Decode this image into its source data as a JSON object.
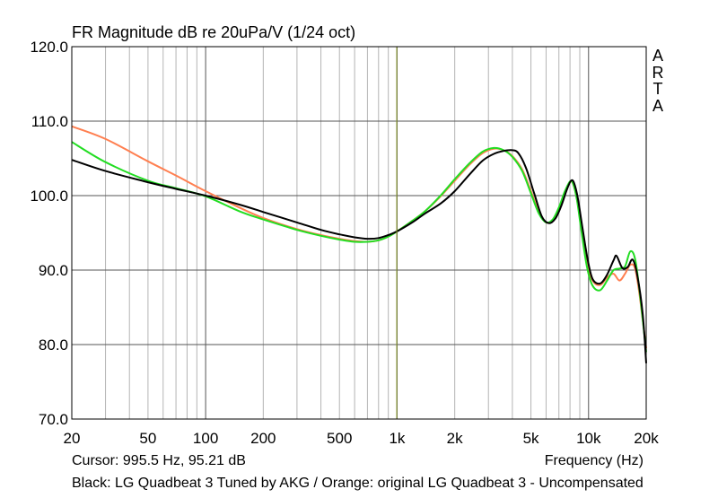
{
  "chart_data": {
    "type": "line",
    "title": "FR Magnitude dB re 20uPa/V (1/24 oct)",
    "xlabel": "Frequency (Hz)",
    "ylabel": "",
    "x_scale": "log",
    "xlim": [
      20,
      20000
    ],
    "ylim": [
      70,
      120
    ],
    "x_ticks": [
      {
        "v": 20,
        "label": "20"
      },
      {
        "v": 50,
        "label": "50"
      },
      {
        "v": 100,
        "label": "100"
      },
      {
        "v": 200,
        "label": "200"
      },
      {
        "v": 500,
        "label": "500"
      },
      {
        "v": 1000,
        "label": "1k"
      },
      {
        "v": 2000,
        "label": "2k"
      },
      {
        "v": 5000,
        "label": "5k"
      },
      {
        "v": 10000,
        "label": "10k"
      },
      {
        "v": 20000,
        "label": "20k"
      }
    ],
    "y_ticks": [
      {
        "v": 70,
        "label": "70.0"
      },
      {
        "v": 80,
        "label": "80.0"
      },
      {
        "v": 90,
        "label": "90.0"
      },
      {
        "v": 100,
        "label": "100.0"
      },
      {
        "v": 110,
        "label": "110.0"
      },
      {
        "v": 120,
        "label": "120.0"
      }
    ],
    "grid": true,
    "cursor_x": 995.5,
    "series": [
      {
        "color": "#ff7f50",
        "values": [
          [
            20,
            109.3
          ],
          [
            30,
            107.6
          ],
          [
            50,
            104.6
          ],
          [
            70,
            102.7
          ],
          [
            100,
            100.6
          ],
          [
            150,
            98.4
          ],
          [
            200,
            97.0
          ],
          [
            300,
            95.5
          ],
          [
            400,
            94.7
          ],
          [
            500,
            94.2
          ],
          [
            600,
            93.9
          ],
          [
            700,
            93.8
          ],
          [
            800,
            94.0
          ],
          [
            900,
            94.5
          ],
          [
            1000,
            95.2
          ],
          [
            1200,
            96.6
          ],
          [
            1400,
            97.9
          ],
          [
            1700,
            100.0
          ],
          [
            2000,
            102.0
          ],
          [
            2400,
            104.2
          ],
          [
            2800,
            105.7
          ],
          [
            3200,
            106.3
          ],
          [
            3600,
            106.1
          ],
          [
            4000,
            105.3
          ],
          [
            4500,
            103.5
          ],
          [
            5000,
            100.6
          ],
          [
            5500,
            97.8
          ],
          [
            6000,
            96.4
          ],
          [
            6500,
            96.7
          ],
          [
            7000,
            98.2
          ],
          [
            7500,
            100.3
          ],
          [
            8000,
            101.8
          ],
          [
            8300,
            101.6
          ],
          [
            8700,
            99.5
          ],
          [
            9200,
            95.5
          ],
          [
            9800,
            91.2
          ],
          [
            10500,
            88.6
          ],
          [
            11500,
            88.0
          ],
          [
            12500,
            89.0
          ],
          [
            13500,
            89.5
          ],
          [
            14500,
            88.6
          ],
          [
            15500,
            89.5
          ],
          [
            16500,
            90.7
          ],
          [
            17500,
            90.2
          ],
          [
            18500,
            86.5
          ],
          [
            20000,
            79.5
          ]
        ]
      },
      {
        "color": "#22dd22",
        "values": [
          [
            20,
            107.2
          ],
          [
            30,
            104.5
          ],
          [
            50,
            102.0
          ],
          [
            70,
            101.0
          ],
          [
            100,
            99.9
          ],
          [
            150,
            97.9
          ],
          [
            200,
            96.8
          ],
          [
            300,
            95.4
          ],
          [
            400,
            94.6
          ],
          [
            500,
            94.1
          ],
          [
            600,
            93.8
          ],
          [
            700,
            93.8
          ],
          [
            800,
            94.0
          ],
          [
            900,
            94.5
          ],
          [
            1000,
            95.2
          ],
          [
            1200,
            96.6
          ],
          [
            1400,
            97.9
          ],
          [
            1700,
            100.1
          ],
          [
            2000,
            102.2
          ],
          [
            2400,
            104.4
          ],
          [
            2800,
            105.9
          ],
          [
            3200,
            106.4
          ],
          [
            3600,
            106.1
          ],
          [
            4000,
            105.2
          ],
          [
            4500,
            103.3
          ],
          [
            5000,
            100.3
          ],
          [
            5500,
            97.6
          ],
          [
            6000,
            96.4
          ],
          [
            6500,
            96.8
          ],
          [
            7000,
            98.4
          ],
          [
            7500,
            100.5
          ],
          [
            8000,
            101.9
          ],
          [
            8300,
            101.6
          ],
          [
            8700,
            99.4
          ],
          [
            9200,
            95.0
          ],
          [
            9800,
            90.5
          ],
          [
            10500,
            87.9
          ],
          [
            11500,
            87.3
          ],
          [
            12500,
            88.6
          ],
          [
            13500,
            90.0
          ],
          [
            14500,
            90.2
          ],
          [
            15500,
            90.5
          ],
          [
            16500,
            92.5
          ],
          [
            17500,
            91.5
          ],
          [
            18500,
            87.0
          ],
          [
            20000,
            79.0
          ]
        ]
      },
      {
        "color": "#000000",
        "values": [
          [
            20,
            104.8
          ],
          [
            30,
            103.3
          ],
          [
            50,
            101.8
          ],
          [
            70,
            100.9
          ],
          [
            100,
            100.0
          ],
          [
            150,
            98.8
          ],
          [
            200,
            97.8
          ],
          [
            300,
            96.4
          ],
          [
            400,
            95.4
          ],
          [
            500,
            94.8
          ],
          [
            600,
            94.4
          ],
          [
            700,
            94.2
          ],
          [
            800,
            94.3
          ],
          [
            900,
            94.7
          ],
          [
            1000,
            95.2
          ],
          [
            1200,
            96.4
          ],
          [
            1400,
            97.6
          ],
          [
            1700,
            99.0
          ],
          [
            2000,
            100.6
          ],
          [
            2400,
            102.9
          ],
          [
            2800,
            104.7
          ],
          [
            3200,
            105.6
          ],
          [
            3600,
            106.0
          ],
          [
            4000,
            106.1
          ],
          [
            4300,
            105.7
          ],
          [
            4700,
            103.8
          ],
          [
            5200,
            100.3
          ],
          [
            5700,
            97.2
          ],
          [
            6200,
            96.3
          ],
          [
            6700,
            96.9
          ],
          [
            7200,
            98.6
          ],
          [
            7700,
            100.8
          ],
          [
            8100,
            102.0
          ],
          [
            8400,
            101.7
          ],
          [
            8800,
            99.6
          ],
          [
            9300,
            95.6
          ],
          [
            9900,
            91.4
          ],
          [
            10500,
            88.8
          ],
          [
            11500,
            88.2
          ],
          [
            12500,
            89.4
          ],
          [
            13500,
            91.3
          ],
          [
            14000,
            91.9
          ],
          [
            15000,
            90.3
          ],
          [
            16000,
            90.4
          ],
          [
            17000,
            91.4
          ],
          [
            18000,
            89.2
          ],
          [
            19200,
            84.0
          ],
          [
            20000,
            77.5
          ]
        ]
      }
    ]
  },
  "arta_label": [
    "A",
    "R",
    "T",
    "A"
  ],
  "cursor_readout": "Cursor: 995.5 Hz, 95.21 dB",
  "footer_text": "Black: LG Quadbeat 3 Tuned by AKG / Orange: original LG Quadbeat 3 - Uncompensated"
}
